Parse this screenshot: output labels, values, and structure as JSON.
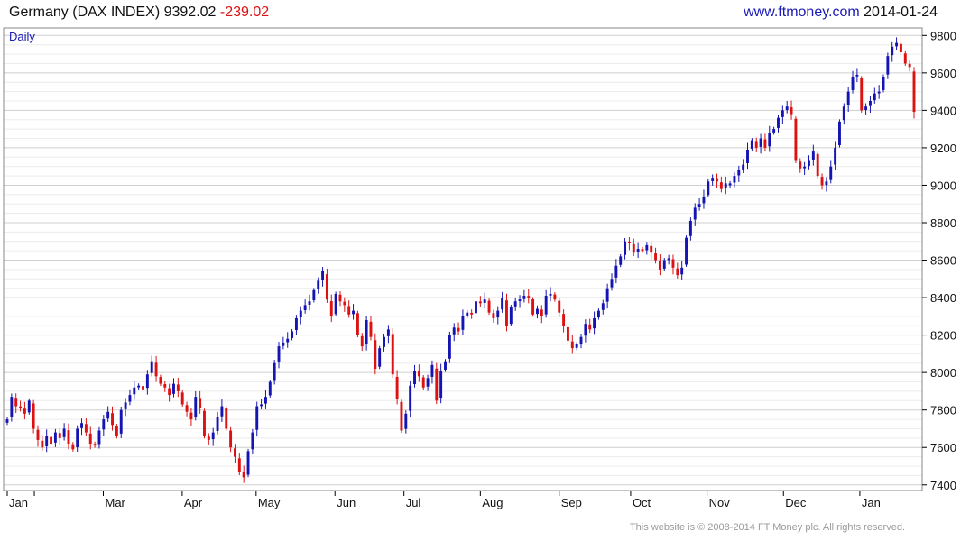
{
  "header": {
    "instrument": "Germany (DAX INDEX)",
    "price": "9392.02",
    "change": "-239.02",
    "site": "www.ftmoney.com",
    "date": "2014-01-24"
  },
  "footer": "This website is © 2008-2014 FT Money plc. All rights reserved.",
  "colors": {
    "up": "#1414b4",
    "down": "#dd1111",
    "grid": "#cfcfcf",
    "axis": "#000000"
  },
  "chart_data": {
    "type": "candlestick",
    "period_label": "Daily",
    "y_axis": {
      "side": "right",
      "ylim": [
        7370,
        9840
      ],
      "ticks": [
        7400,
        7600,
        7800,
        8000,
        8200,
        8400,
        8600,
        8800,
        9000,
        9200,
        9400,
        9600,
        9800
      ]
    },
    "x_axis": {
      "range": [
        "2013-01-21",
        "2014-01-24"
      ],
      "ticks": [
        {
          "label": "Jan",
          "date": "2013-01-21"
        },
        {
          "label": "",
          "date": "2013-02-01"
        },
        {
          "label": "Mar",
          "date": "2013-03-01"
        },
        {
          "label": "Apr",
          "date": "2013-04-02"
        },
        {
          "label": "May",
          "date": "2013-05-02"
        },
        {
          "label": "Jun",
          "date": "2013-06-03"
        },
        {
          "label": "Jul",
          "date": "2013-07-01"
        },
        {
          "label": "Aug",
          "date": "2013-08-01"
        },
        {
          "label": "Sep",
          "date": "2013-09-02"
        },
        {
          "label": "Oct",
          "date": "2013-10-01"
        },
        {
          "label": "Nov",
          "date": "2013-11-01"
        },
        {
          "label": "Dec",
          "date": "2013-12-02"
        },
        {
          "label": "Jan",
          "date": "2014-01-02"
        }
      ]
    },
    "grid": true,
    "closes": [
      7750,
      7870,
      7820,
      7810,
      7780,
      7850,
      7700,
      7640,
      7600,
      7660,
      7620,
      7680,
      7650,
      7700,
      7620,
      7590,
      7700,
      7730,
      7680,
      7620,
      7610,
      7690,
      7750,
      7790,
      7720,
      7660,
      7800,
      7840,
      7880,
      7920,
      7930,
      7910,
      7990,
      8060,
      7980,
      7940,
      7920,
      7880,
      7940,
      7900,
      7830,
      7790,
      7750,
      7870,
      7810,
      7660,
      7640,
      7680,
      7760,
      7820,
      7700,
      7600,
      7550,
      7470,
      7440,
      7580,
      7680,
      7820,
      7830,
      7870,
      7950,
      8050,
      8140,
      8160,
      8180,
      8220,
      8290,
      8330,
      8360,
      8380,
      8440,
      8490,
      8540,
      8390,
      8300,
      8420,
      8380,
      8360,
      8310,
      8330,
      8200,
      8140,
      8280,
      8190,
      8020,
      8130,
      8190,
      8230,
      7990,
      7860,
      7690,
      7780,
      7930,
      8010,
      7980,
      7920,
      7970,
      8040,
      7850,
      8010,
      8060,
      8200,
      8240,
      8220,
      8300,
      8320,
      8310,
      8380,
      8370,
      8390,
      8320,
      8290,
      8330,
      8400,
      8250,
      8350,
      8380,
      8390,
      8410,
      8400,
      8310,
      8340,
      8300,
      8410,
      8420,
      8390,
      8320,
      8250,
      8170,
      8130,
      8150,
      8190,
      8260,
      8230,
      8290,
      8330,
      8370,
      8450,
      8500,
      8570,
      8620,
      8700,
      8690,
      8640,
      8660,
      8650,
      8680,
      8640,
      8600,
      8550,
      8600,
      8610,
      8560,
      8520,
      8560,
      8720,
      8810,
      8880,
      8900,
      8940,
      9020,
      9040,
      9020,
      8980,
      9010,
      9010,
      9050,
      9080,
      9110,
      9190,
      9240,
      9200,
      9250,
      9200,
      9280,
      9300,
      9360,
      9400,
      9420,
      9380,
      9130,
      9090,
      9100,
      9130,
      9180,
      9050,
      9000,
      9020,
      9100,
      9200,
      9340,
      9420,
      9500,
      9580,
      9590,
      9400,
      9420,
      9450,
      9490,
      9500,
      9580,
      9690,
      9740,
      9760,
      9710,
      9650,
      9631,
      9392
    ],
    "series_colors": {
      "up": "#1414b4",
      "down": "#dd1111"
    }
  }
}
